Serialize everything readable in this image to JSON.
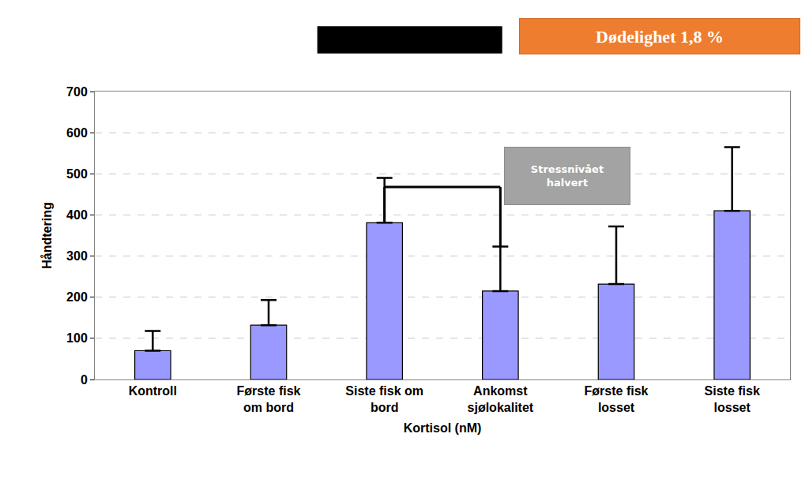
{
  "chart_data": {
    "type": "bar",
    "categories": [
      "Kontroll",
      "Første fisk\nom bord",
      "Siste fisk om\nbord",
      "Ankomst\nsjølokalitet",
      "Første fisk\nlosset",
      "Siste fisk\nlosset"
    ],
    "values": [
      70,
      132,
      381,
      215,
      232,
      410
    ],
    "errors": [
      48,
      61,
      109,
      108,
      140,
      155
    ],
    "color": "#9999ff",
    "xlabel": "Kortisol (nM)",
    "ylabel": "Håndtering",
    "ylim": [
      0,
      700
    ],
    "yticks": [
      0,
      100,
      200,
      300,
      400,
      500,
      600,
      700
    ],
    "grid": true,
    "annotations": [
      {
        "text": "Dødelighet 1,8 %"
      },
      {
        "text": "Stressnivået\nhalvert",
        "from": "Siste fisk om\nbord",
        "to": "Ankomst\nsjølokalitet",
        "y": 468
      }
    ]
  }
}
